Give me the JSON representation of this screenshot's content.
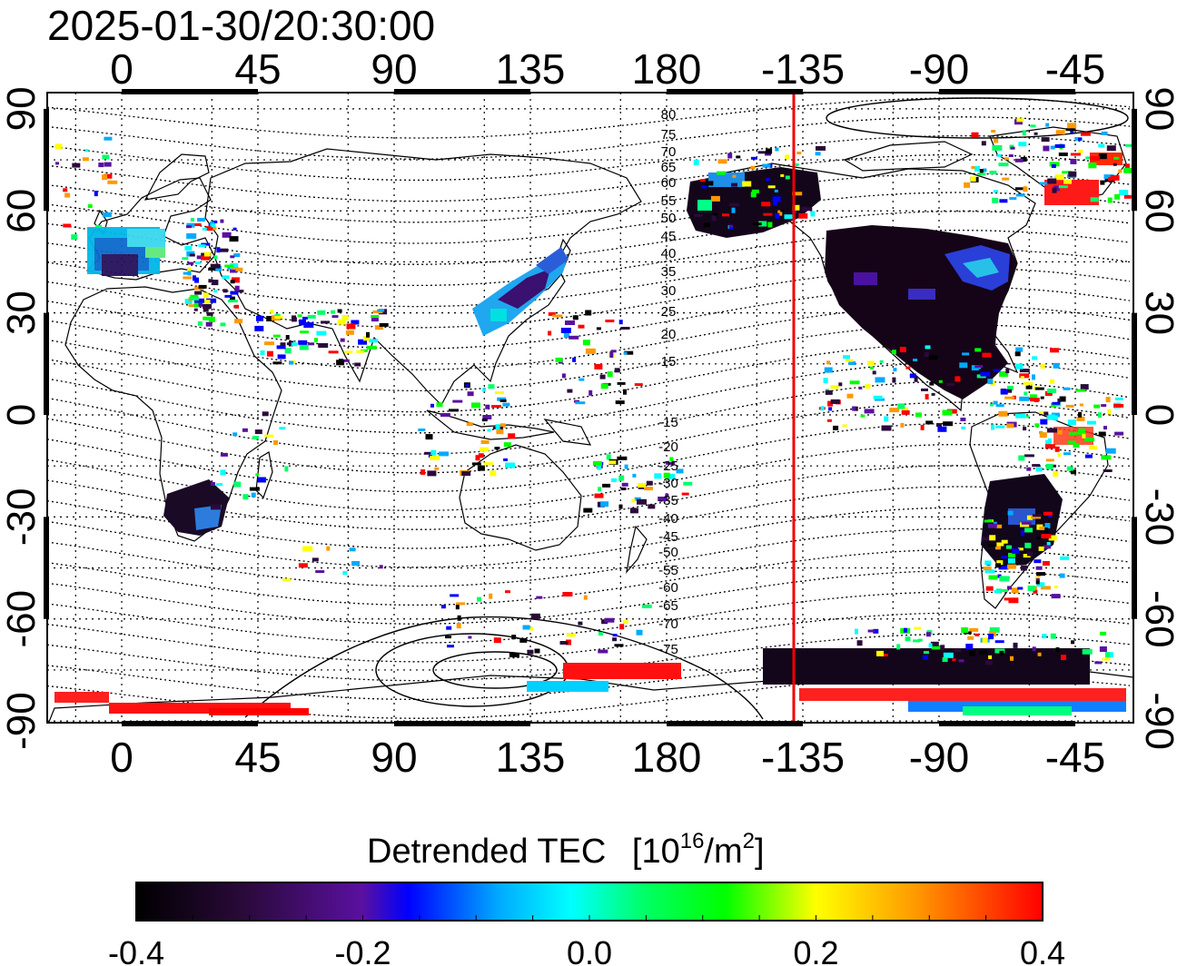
{
  "timestamp": "2025-01-30/20:30:00",
  "colorbar": {
    "title": "Detrended TEC",
    "unit_prefix": "[10",
    "unit_exp": "16",
    "unit_mid": "/m",
    "unit_exp2": "2",
    "unit_suffix": "]",
    "ticks": [
      "-0.4",
      "-0.2",
      "0.0",
      "0.2",
      "0.4"
    ],
    "min": -0.4,
    "max": 0.4,
    "stops": [
      "#000000",
      "#2a0a3a",
      "#5a10a0",
      "#0000ff",
      "#00aaff",
      "#00ffff",
      "#00ff66",
      "#00ff00",
      "#ffff00",
      "#ff9900",
      "#ff0000"
    ]
  },
  "map": {
    "lon_ticks": [
      "0",
      "45",
      "90",
      "135",
      "180",
      "-135",
      "-90",
      "-45"
    ],
    "lat_ticks_left": [
      "90",
      "60",
      "30",
      "0",
      "-30",
      "-60",
      "-90"
    ],
    "lat_ticks_right": [
      "90",
      "60",
      "30",
      "0",
      "-30",
      "-60",
      "-90"
    ],
    "contour_labels_north": [
      "80",
      "75",
      "70",
      "65",
      "60",
      "55",
      "50",
      "45",
      "40",
      "35",
      "30",
      "25",
      "20",
      "15"
    ],
    "contour_labels_south": [
      "-15",
      "-20",
      "-25",
      "-30",
      "-35",
      "-40",
      "-45",
      "-50",
      "-55",
      "-60",
      "-65",
      "-70",
      "-75"
    ],
    "marker_line_color": "#ee0000",
    "marker_longitude": -138
  }
}
